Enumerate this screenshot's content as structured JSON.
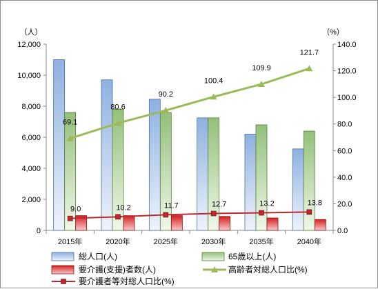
{
  "chart_data": {
    "type": "bar",
    "categories": [
      "2015年",
      "2020年",
      "2025年",
      "2030年",
      "2035年",
      "2040年"
    ],
    "left_axis": {
      "unit_label": "（人）",
      "ylim": [
        0,
        12000
      ],
      "ticks": [
        "0",
        "2,000",
        "4,000",
        "6,000",
        "8,000",
        "10,000",
        "12,000"
      ]
    },
    "right_axis": {
      "unit_label": "（%）",
      "ylim": [
        0,
        140
      ],
      "ticks": [
        "0.0",
        "20.0",
        "40.0",
        "60.0",
        "80.0",
        "100.0",
        "120.0",
        "140.0"
      ]
    },
    "series": [
      {
        "name": "総人口(人)",
        "kind": "bar",
        "axis": "left",
        "color": "#9bbbe3",
        "values": [
          11000,
          9700,
          8450,
          7250,
          6200,
          5250
        ]
      },
      {
        "name": "65歳以上(人)",
        "kind": "bar",
        "axis": "left",
        "color": "#9bc27f",
        "values": [
          7600,
          7800,
          7600,
          7250,
          6800,
          6400
        ]
      },
      {
        "name": "要介護(支援)者数(人)",
        "kind": "bar",
        "axis": "left",
        "color": "#e02020",
        "values": [
          950,
          950,
          950,
          900,
          800,
          700
        ]
      },
      {
        "name": "高齢者対総人口比(%)",
        "kind": "line",
        "axis": "right",
        "color": "#9bbb59",
        "marker": "triangle",
        "values": [
          69.1,
          80.6,
          90.2,
          100.4,
          109.9,
          121.7
        ],
        "labels": [
          "69.1",
          "80.6",
          "90.2",
          "100.4",
          "109.9",
          "121.7"
        ]
      },
      {
        "name": "要介護者等対総人口比(%)",
        "kind": "line",
        "axis": "right",
        "color": "#c0282d",
        "marker": "square",
        "values": [
          9.0,
          10.2,
          11.7,
          12.7,
          13.2,
          13.8
        ],
        "labels": [
          "9.0",
          "10.2",
          "11.7",
          "12.7",
          "13.2",
          "13.8"
        ]
      }
    ],
    "grid": false,
    "legend_position": "bottom"
  }
}
